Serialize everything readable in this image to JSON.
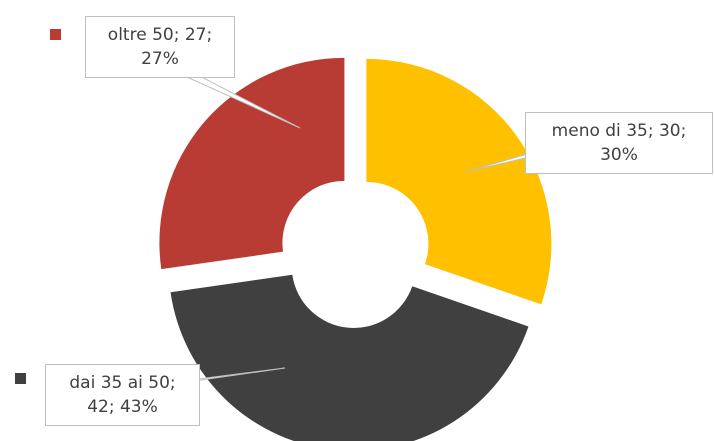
{
  "chart_data": {
    "type": "donut",
    "categories": [
      "meno di 35",
      "dai 35 ai 50",
      "oltre 50"
    ],
    "values": [
      30,
      42,
      27
    ],
    "value_labels": [
      "meno di 35; 30; 30%",
      "dai 35 ai 50; 42; 43%",
      "oltre 50; 27; 27%"
    ],
    "colors": [
      "#ffc000",
      "#404040",
      "#b83c34"
    ]
  }
}
